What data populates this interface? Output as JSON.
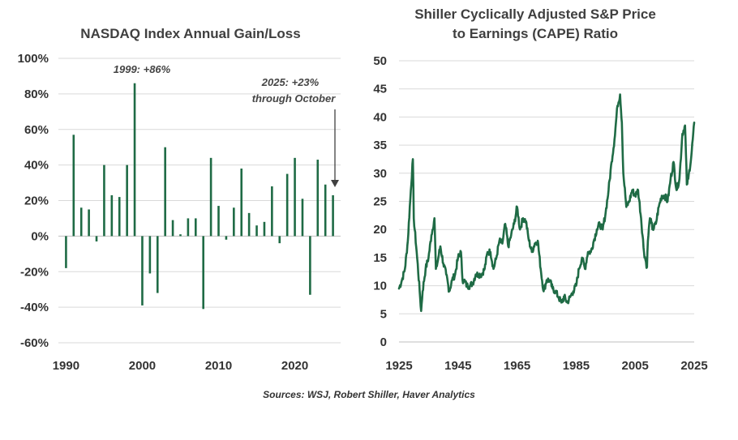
{
  "colors": {
    "series": "#1f6b45",
    "grid": "#d9d9d9",
    "axis": "#bfbfbf",
    "text": "#333333",
    "arrow": "#404040"
  },
  "source": "Sources: WSJ, Robert Shiller, Haver Analytics",
  "chart_data": [
    {
      "type": "bar",
      "title": "NASDAQ Index Annual Gain/Loss",
      "xlabel": "",
      "ylabel": "",
      "xlim": [
        1989,
        2026
      ],
      "ylim": [
        -60,
        100
      ],
      "xticks": [
        1990,
        2000,
        2010,
        2020
      ],
      "yticks": [
        -60,
        -40,
        -20,
        0,
        20,
        40,
        60,
        80,
        100
      ],
      "ytick_labels": [
        "-60%",
        "-40%",
        "-20%",
        "0%",
        "20%",
        "40%",
        "60%",
        "80%",
        "100%"
      ],
      "years": [
        1990,
        1991,
        1992,
        1993,
        1994,
        1995,
        1996,
        1997,
        1998,
        1999,
        2000,
        2001,
        2002,
        2003,
        2004,
        2005,
        2006,
        2007,
        2008,
        2009,
        2010,
        2011,
        2012,
        2013,
        2014,
        2015,
        2016,
        2017,
        2018,
        2019,
        2020,
        2021,
        2022,
        2023,
        2024,
        2025
      ],
      "values": [
        -18,
        57,
        16,
        15,
        -3,
        40,
        23,
        22,
        40,
        86,
        -39,
        -21,
        -32,
        50,
        9,
        1,
        10,
        10,
        -41,
        44,
        17,
        -2,
        16,
        38,
        13,
        6,
        8,
        28,
        -4,
        35,
        44,
        21,
        -33,
        43,
        29,
        23
      ],
      "annotations": [
        {
          "text": "1999: +86%"
        },
        {
          "text_lines": [
            "2025: +23%",
            "through October"
          ]
        }
      ]
    },
    {
      "type": "line",
      "title_lines": [
        "Shiller Cyclically Adjusted S&P Price",
        "to Earnings (CAPE) Ratio"
      ],
      "xlabel": "",
      "ylabel": "",
      "xlim": [
        1925,
        2025
      ],
      "ylim": [
        0,
        50
      ],
      "xticks": [
        1925,
        1945,
        1965,
        1985,
        2005,
        2025
      ],
      "yticks": [
        0,
        5,
        10,
        15,
        20,
        25,
        30,
        35,
        40,
        45,
        50
      ],
      "series": [
        {
          "name": "CAPE",
          "x": [
            1925,
            1926,
            1927,
            1928,
            1929,
            1929.7,
            1930,
            1931,
            1932,
            1932.5,
            1933,
            1934,
            1935,
            1936,
            1937,
            1937.5,
            1938,
            1939,
            1940,
            1941,
            1942,
            1943,
            1944,
            1945,
            1946,
            1946.5,
            1947,
            1948,
            1949,
            1950,
            1951,
            1952,
            1953,
            1954,
            1955,
            1956,
            1957,
            1958,
            1959,
            1960,
            1961,
            1962,
            1963,
            1964,
            1965,
            1966,
            1967,
            1968,
            1969,
            1970,
            1971,
            1972,
            1973,
            1974,
            1975,
            1976,
            1977,
            1978,
            1979,
            1980,
            1981,
            1982,
            1983,
            1984,
            1985,
            1986,
            1987,
            1988,
            1989,
            1990,
            1991,
            1992,
            1993,
            1994,
            1995,
            1996,
            1997,
            1998,
            1999,
            1999.9,
            2000.5,
            2001,
            2002,
            2003,
            2004,
            2005,
            2006,
            2007,
            2008,
            2009,
            2009.3,
            2010,
            2011,
            2012,
            2013,
            2014,
            2015,
            2016,
            2017,
            2018,
            2019,
            2020,
            2021,
            2021.9,
            2022.5,
            2023,
            2024,
            2024.5,
            2025
          ],
          "y": [
            9.5,
            11,
            13,
            18,
            27,
            32.5,
            22,
            16,
            9,
            5.5,
            9,
            13,
            15,
            19,
            22,
            13,
            14,
            17,
            14,
            12,
            9,
            11,
            12,
            15,
            16,
            11,
            11,
            10,
            10,
            10.5,
            12,
            12,
            12,
            13,
            16,
            16,
            13,
            15,
            18,
            17.5,
            21,
            17,
            19,
            21,
            24,
            20,
            22,
            21.5,
            18,
            16,
            17.5,
            18,
            13,
            9,
            11,
            11,
            9.5,
            9,
            8,
            7,
            8,
            7,
            8,
            9,
            10,
            13,
            15,
            13,
            16,
            16,
            18,
            20,
            21,
            20,
            23,
            27,
            32,
            36,
            42,
            44,
            39,
            30,
            24,
            25,
            27,
            26,
            27,
            22,
            16,
            13.3,
            18,
            22,
            20,
            21,
            24,
            26,
            26,
            25,
            29,
            32,
            27,
            29,
            37,
            38.5,
            28,
            29,
            33,
            36,
            39
          ]
        }
      ]
    }
  ]
}
